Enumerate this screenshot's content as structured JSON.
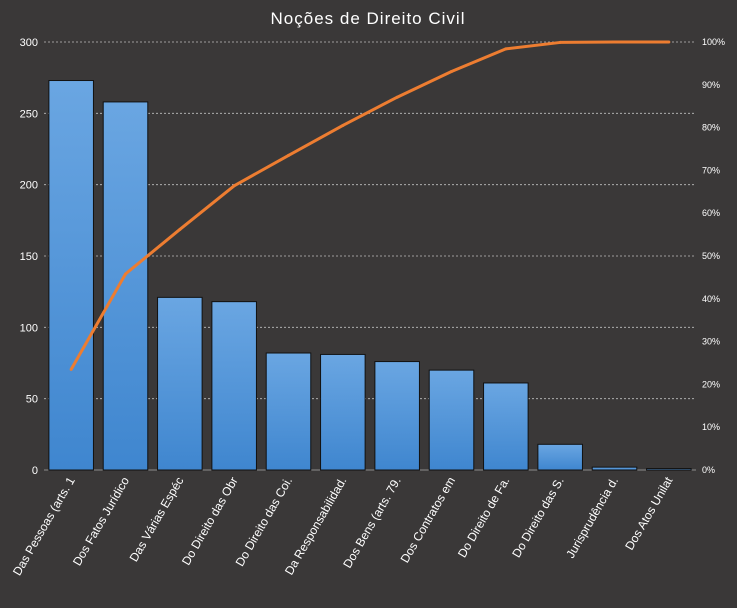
{
  "chart_data": {
    "type": "bar",
    "title": "Noções de Direito Civil",
    "categories": [
      "Das Pessoas (arts. 1",
      "Dos Fatos Jurídico",
      "Das Várias Espéc",
      "Do Direito das Obr",
      "Do Direito das Coi.",
      "Da Responsabilidad.",
      "Dos Bens (arts. 79.",
      "Dos Contratos em",
      "Do Direito de Fa.",
      "Do Direito das S.",
      "Jurisprudência d.",
      "Dos Atos Unilat"
    ],
    "series": [
      {
        "type": "bar",
        "values": [
          273,
          258,
          121,
          118,
          82,
          81,
          76,
          70,
          61,
          18,
          2,
          1
        ]
      },
      {
        "type": "line",
        "axis": "secondary",
        "values": [
          23.5,
          45.8,
          56.2,
          66.4,
          73.5,
          80.5,
          87.1,
          93.1,
          98.4,
          99.9,
          100,
          100
        ]
      }
    ],
    "ylim": [
      0,
      300
    ],
    "yticks": [
      "0",
      "50",
      "100",
      "150",
      "200",
      "250",
      "300"
    ],
    "y2lim": [
      0,
      100
    ],
    "y2ticks": [
      "0%",
      "10%",
      "20%",
      "30%",
      "40%",
      "50%",
      "60%",
      "70%",
      "80%",
      "90%",
      "100%"
    ],
    "grid": true,
    "colors": {
      "background": "#3a3838",
      "bar_top": "#6aa6e2",
      "bar_bottom": "#3f86cf",
      "line": "#ed7d31",
      "grid": "#bfbfbf",
      "text": "#ffffff"
    }
  }
}
